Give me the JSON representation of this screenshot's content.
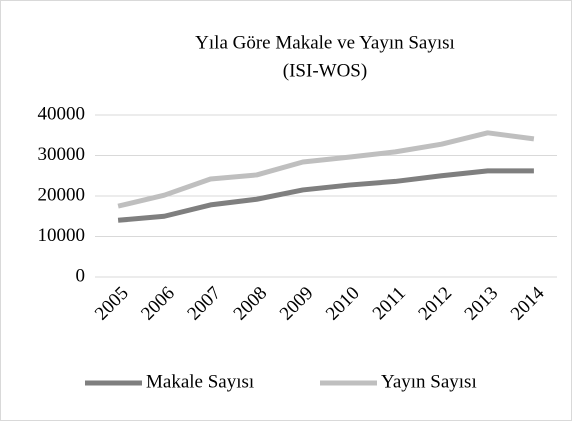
{
  "chart_data": {
    "type": "line",
    "title": "Yıla Göre Makale ve Yayın Sayısı",
    "subtitle": "(ISI-WOS)",
    "categories": [
      "2005",
      "2006",
      "2007",
      "2008",
      "2009",
      "2010",
      "2011",
      "2012",
      "2013",
      "2014"
    ],
    "series": [
      {
        "name": "Makale Sayısı",
        "color": "#7f7f7f",
        "values": [
          14000,
          15000,
          17800,
          19200,
          21500,
          22700,
          23600,
          25000,
          26200,
          26200
        ]
      },
      {
        "name": "Yayın Sayısı",
        "color": "#bfbfbf",
        "values": [
          17500,
          20200,
          24200,
          25200,
          28400,
          29600,
          30900,
          32800,
          35600,
          34100
        ]
      }
    ],
    "ylim": [
      0,
      40000
    ],
    "yticks": [
      0,
      10000,
      20000,
      30000,
      40000
    ],
    "grid": true,
    "legend": "bottom"
  }
}
